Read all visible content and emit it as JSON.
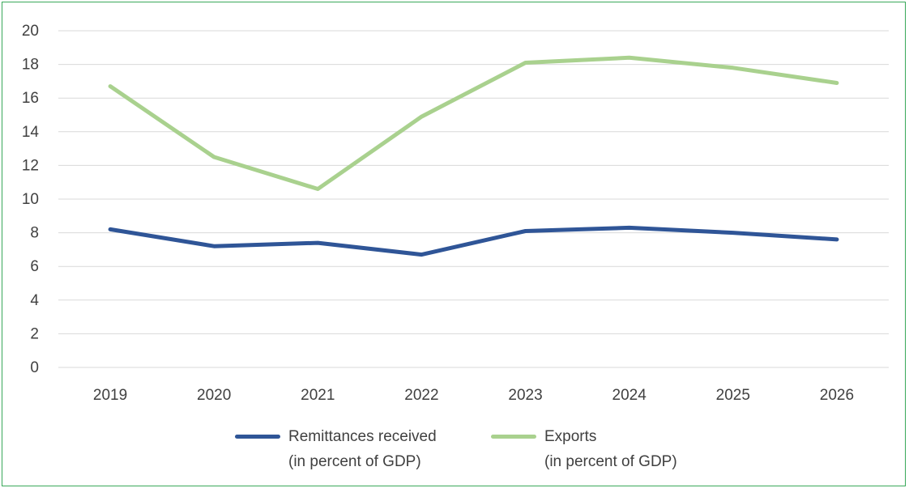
{
  "chart_data": {
    "type": "line",
    "categories": [
      "2019",
      "2020",
      "2021",
      "2022",
      "2023",
      "2024",
      "2025",
      "2026"
    ],
    "ylim": [
      0,
      20
    ],
    "yticks": [
      "0",
      "2",
      "4",
      "6",
      "8",
      "10",
      "12",
      "14",
      "16",
      "18",
      "20"
    ],
    "grid": true,
    "legend_position": "bottom",
    "series": [
      {
        "name": "Remittances received",
        "name_line2": "(in percent of GDP)",
        "color": "#2f5597",
        "values": [
          8.2,
          7.2,
          7.4,
          6.7,
          8.1,
          8.3,
          8.0,
          7.6
        ]
      },
      {
        "name": "Exports",
        "name_line2": "(in percent of GDP)",
        "color": "#a9d18e",
        "values": [
          16.7,
          12.5,
          10.6,
          14.9,
          18.1,
          18.4,
          17.8,
          16.9
        ]
      }
    ]
  }
}
